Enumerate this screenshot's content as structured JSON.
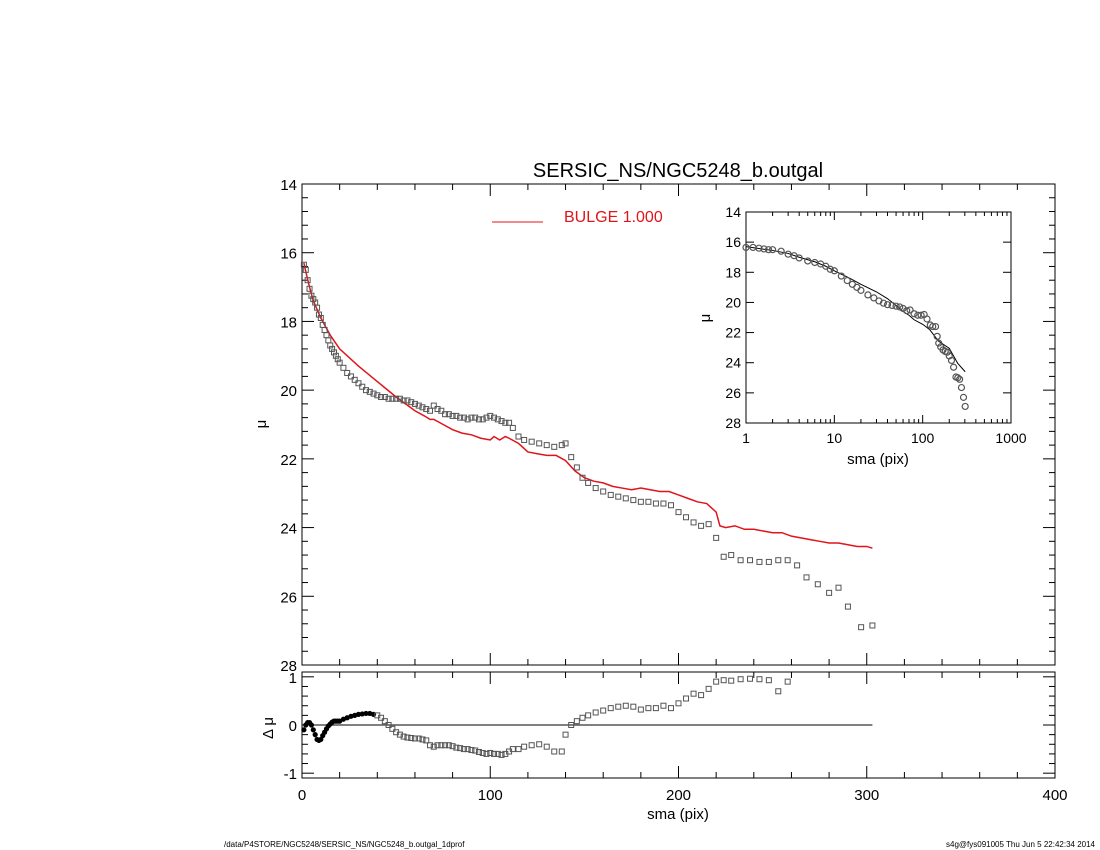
{
  "title": "SERSIC_NS/NGC5248_b.outgal",
  "footer": {
    "path": "/data/P4STORE/NGC5248/SERSIC_NS/NGC5248_b.outgal_1dprof",
    "stamp": "s4g@fys091005  Thu Jun  5 22:42:34 2014"
  },
  "colors": {
    "model": "#e0141a",
    "points": "#555555",
    "axes": "#000000"
  },
  "chart_data": [
    {
      "id": "main",
      "type": "scatter",
      "title": "SERSIC_NS/NGC5248_b.outgal",
      "xlabel": "",
      "ylabel": "μ",
      "xlim": [
        0,
        400
      ],
      "ylim": [
        28,
        14
      ],
      "y_inverted": true,
      "yticks": [
        14,
        16,
        18,
        20,
        22,
        24,
        26,
        28
      ],
      "legend": {
        "label": "BULGE  1.000",
        "position": "top-center"
      },
      "series": [
        {
          "name": "BULGE  1.000",
          "kind": "line",
          "x": [
            1,
            2,
            4,
            6,
            10,
            15,
            20,
            30,
            40,
            50,
            55,
            60,
            65,
            68,
            70,
            75,
            80,
            85,
            90,
            95,
            100,
            102,
            105,
            108,
            110,
            115,
            120,
            125,
            130,
            135,
            140,
            145,
            150,
            155,
            160,
            165,
            170,
            175,
            180,
            185,
            190,
            195,
            200,
            205,
            210,
            215,
            220,
            222,
            225,
            230,
            235,
            240,
            245,
            250,
            255,
            260,
            265,
            270,
            275,
            280,
            285,
            290,
            295,
            300,
            303
          ],
          "y": [
            16.3,
            16.55,
            17.0,
            17.4,
            17.9,
            18.4,
            18.8,
            19.3,
            19.75,
            20.2,
            20.4,
            20.6,
            20.75,
            20.85,
            20.85,
            21.0,
            21.15,
            21.25,
            21.3,
            21.4,
            21.45,
            21.35,
            21.45,
            21.35,
            21.4,
            21.55,
            21.8,
            21.85,
            21.9,
            21.9,
            22.05,
            22.35,
            22.55,
            22.65,
            22.7,
            22.8,
            22.85,
            22.9,
            22.85,
            22.9,
            22.95,
            22.95,
            23.05,
            23.15,
            23.25,
            23.3,
            23.55,
            23.95,
            24.0,
            23.95,
            24.05,
            24.05,
            24.1,
            24.15,
            24.15,
            24.25,
            24.3,
            24.35,
            24.4,
            24.45,
            24.45,
            24.5,
            24.55,
            24.55,
            24.6
          ]
        },
        {
          "name": "",
          "kind": "points",
          "x": [
            1,
            2,
            3,
            4,
            5,
            6,
            7,
            8,
            9,
            10,
            11,
            12,
            13,
            14,
            15,
            16,
            17,
            18,
            19,
            20,
            22,
            24,
            26,
            28,
            30,
            32,
            34,
            36,
            38,
            40,
            42,
            44,
            46,
            48,
            50,
            52,
            54,
            56,
            58,
            60,
            62,
            64,
            66,
            68,
            70,
            72,
            74,
            76,
            78,
            80,
            82,
            84,
            86,
            88,
            90,
            92,
            94,
            96,
            98,
            100,
            102,
            104,
            106,
            108,
            110,
            112,
            115,
            118,
            122,
            126,
            130,
            134,
            138,
            140,
            143,
            146,
            149,
            152,
            156,
            160,
            164,
            168,
            172,
            176,
            180,
            184,
            188,
            192,
            196,
            200,
            204,
            208,
            212,
            216,
            220,
            224,
            228,
            233,
            238,
            243,
            248,
            253,
            258,
            263,
            268,
            274,
            280,
            285,
            290,
            297,
            303
          ],
          "y": [
            16.35,
            16.5,
            16.8,
            17.05,
            17.25,
            17.35,
            17.45,
            17.6,
            17.8,
            17.9,
            18.1,
            18.25,
            18.4,
            18.55,
            18.7,
            18.8,
            18.9,
            19.0,
            19.1,
            19.2,
            19.35,
            19.5,
            19.6,
            19.7,
            19.8,
            19.9,
            20.0,
            20.05,
            20.1,
            20.15,
            20.2,
            20.2,
            20.25,
            20.25,
            20.25,
            20.25,
            20.3,
            20.3,
            20.35,
            20.4,
            20.45,
            20.5,
            20.55,
            20.6,
            20.45,
            20.55,
            20.6,
            20.7,
            20.7,
            20.75,
            20.75,
            20.8,
            20.8,
            20.85,
            20.8,
            20.8,
            20.85,
            20.85,
            20.8,
            20.75,
            20.8,
            20.85,
            20.9,
            20.95,
            20.95,
            21.1,
            21.35,
            21.45,
            21.5,
            21.55,
            21.6,
            21.65,
            21.6,
            21.55,
            21.95,
            22.25,
            22.55,
            22.7,
            22.85,
            22.95,
            23.05,
            23.1,
            23.15,
            23.2,
            23.25,
            23.25,
            23.3,
            23.3,
            23.35,
            23.55,
            23.7,
            23.85,
            23.95,
            23.9,
            24.3,
            24.85,
            24.8,
            24.95,
            24.95,
            25.0,
            25.0,
            24.95,
            24.95,
            25.1,
            25.45,
            25.65,
            25.9,
            25.75,
            26.3,
            26.9,
            26.85
          ]
        }
      ]
    },
    {
      "id": "residual",
      "type": "scatter",
      "xlabel": "sma (pix)",
      "ylabel": "Δ μ",
      "xlim": [
        0,
        400
      ],
      "ylim": [
        -1.1,
        1.1
      ],
      "xticks": [
        0,
        100,
        200,
        300,
        400
      ],
      "yticks": [
        -1,
        0,
        1
      ],
      "zero_line_to": 303,
      "series": [
        {
          "name": "",
          "kind": "points",
          "x": [
            1,
            2,
            3,
            4,
            5,
            6,
            7,
            8,
            9,
            10,
            11,
            12,
            13,
            14,
            15,
            16,
            17,
            18,
            19,
            20,
            22,
            24,
            26,
            28,
            30,
            32,
            34,
            36,
            38,
            40,
            42,
            44,
            46,
            48,
            50,
            52,
            54,
            56,
            58,
            60,
            62,
            64,
            66,
            68,
            70,
            72,
            74,
            76,
            78,
            80,
            82,
            84,
            86,
            88,
            90,
            92,
            94,
            96,
            98,
            100,
            102,
            104,
            106,
            108,
            110,
            112,
            115,
            118,
            122,
            126,
            130,
            134,
            138,
            140,
            143,
            146,
            149,
            152,
            156,
            160,
            164,
            168,
            172,
            176,
            180,
            184,
            188,
            192,
            196,
            200,
            204,
            208,
            212,
            216,
            220,
            224,
            228,
            233,
            238,
            243,
            248,
            253,
            258
          ],
          "y": [
            -0.1,
            0.0,
            0.05,
            0.05,
            0.0,
            -0.1,
            -0.2,
            -0.3,
            -0.32,
            -0.3,
            -0.22,
            -0.15,
            -0.08,
            -0.02,
            0.02,
            0.06,
            0.08,
            0.08,
            0.08,
            0.08,
            0.12,
            0.15,
            0.18,
            0.2,
            0.22,
            0.23,
            0.24,
            0.24,
            0.22,
            0.2,
            0.15,
            0.08,
            0.0,
            -0.08,
            -0.15,
            -0.2,
            -0.24,
            -0.26,
            -0.27,
            -0.28,
            -0.28,
            -0.3,
            -0.32,
            -0.42,
            -0.45,
            -0.42,
            -0.42,
            -0.42,
            -0.42,
            -0.44,
            -0.47,
            -0.48,
            -0.5,
            -0.5,
            -0.52,
            -0.53,
            -0.56,
            -0.58,
            -0.6,
            -0.58,
            -0.6,
            -0.6,
            -0.62,
            -0.6,
            -0.55,
            -0.5,
            -0.5,
            -0.45,
            -0.42,
            -0.4,
            -0.45,
            -0.55,
            -0.55,
            -0.2,
            0.0,
            0.08,
            0.15,
            0.2,
            0.26,
            0.3,
            0.35,
            0.38,
            0.4,
            0.38,
            0.32,
            0.35,
            0.35,
            0.4,
            0.35,
            0.45,
            0.55,
            0.65,
            0.62,
            0.75,
            0.9,
            0.93,
            0.92,
            0.95,
            0.96,
            0.95,
            0.93,
            0.7,
            0.9
          ]
        }
      ]
    },
    {
      "id": "inset",
      "type": "scatter",
      "xlabel": "sma (pix)",
      "ylabel": "μ",
      "xscale": "log",
      "xlim": [
        1,
        1000
      ],
      "ylim": [
        28,
        14
      ],
      "y_inverted": true,
      "xticks": [
        1,
        10,
        100,
        1000
      ],
      "yticks": [
        14,
        16,
        18,
        20,
        22,
        24,
        26,
        28
      ],
      "series": [
        {
          "name": "",
          "kind": "line",
          "x": [
            1,
            1.5,
            2,
            3,
            4,
            6,
            8,
            10,
            15,
            20,
            30,
            40,
            50,
            60,
            70,
            80,
            100,
            120,
            150,
            200,
            250,
            303
          ],
          "y": [
            16.3,
            16.45,
            16.55,
            16.75,
            17.0,
            17.3,
            17.6,
            17.9,
            18.4,
            18.8,
            19.3,
            19.75,
            20.2,
            20.6,
            20.85,
            21.15,
            21.45,
            21.8,
            22.55,
            23.05,
            24.05,
            24.6
          ]
        },
        {
          "name": "",
          "kind": "points",
          "x": [
            1,
            1.2,
            1.4,
            1.6,
            1.8,
            2,
            2.5,
            3,
            3.5,
            4,
            5,
            6,
            7,
            8,
            9,
            10,
            12,
            14,
            16,
            18,
            20,
            24,
            28,
            32,
            36,
            40,
            45,
            50,
            55,
            60,
            66,
            72,
            80,
            88,
            96,
            104,
            112,
            122,
            130,
            140,
            146,
            152,
            160,
            170,
            180,
            190,
            200,
            212,
            224,
            238,
            250,
            262,
            275,
            290,
            303
          ],
          "y": [
            16.35,
            16.35,
            16.4,
            16.45,
            16.5,
            16.5,
            16.6,
            16.8,
            16.9,
            17.05,
            17.25,
            17.35,
            17.45,
            17.6,
            17.8,
            17.9,
            18.25,
            18.55,
            18.8,
            19.0,
            19.2,
            19.5,
            19.7,
            19.9,
            20.05,
            20.15,
            20.2,
            20.25,
            20.3,
            20.4,
            20.55,
            20.5,
            20.75,
            20.85,
            20.85,
            20.8,
            21.1,
            21.5,
            21.6,
            21.6,
            22.25,
            22.7,
            22.95,
            23.15,
            23.25,
            23.3,
            23.55,
            23.85,
            24.3,
            24.95,
            25.0,
            25.1,
            25.65,
            26.3,
            26.9
          ]
        }
      ]
    }
  ]
}
